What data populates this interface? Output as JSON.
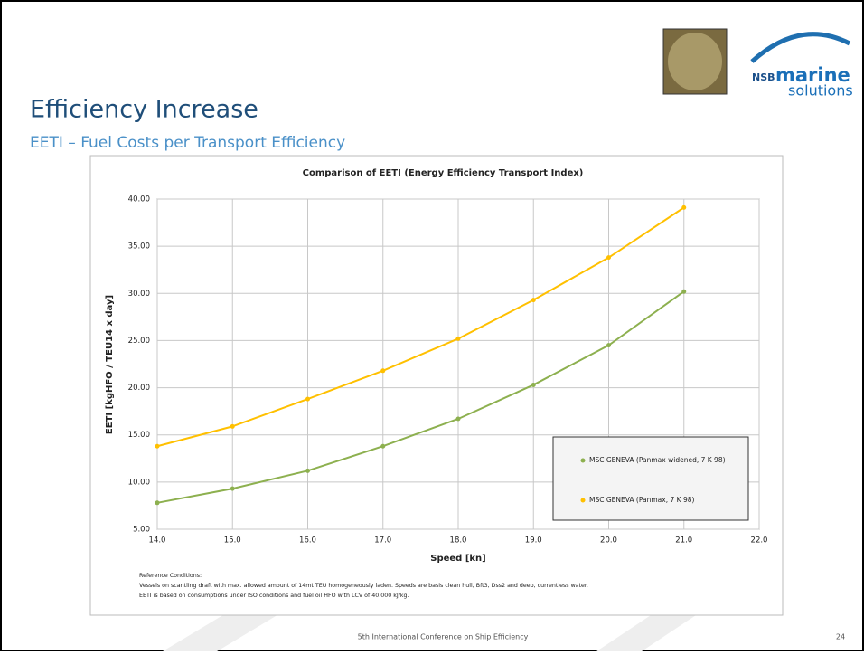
{
  "slide": {
    "title": "Efficiency Increase",
    "subtitle": "EETI – Fuel Costs per Transport Efficiency",
    "footer": "5th International Conference on Ship Efficiency",
    "page": "24",
    "logo": {
      "brand": "NSB",
      "word1": "marine",
      "word2": "solutions"
    }
  },
  "chart_data": {
    "type": "line",
    "title": "Comparison of EETI (Energy Efficiency Transport Index)",
    "x_label": "Speed [kn]",
    "y_label": "EETI [kgHFO / TEU14 x day]",
    "x": [
      14,
      15,
      16,
      17,
      18,
      19,
      20,
      21
    ],
    "series": [
      {
        "name": "MSC GENEVA (Panmax widened, 7 K 98)",
        "color": "#8db04f",
        "values": [
          7.8,
          9.3,
          11.2,
          13.8,
          16.7,
          20.3,
          24.5,
          30.2
        ]
      },
      {
        "name": "MSC GENEVA (Panmax, 7 K 98)",
        "color": "#ffc000",
        "values": [
          13.8,
          15.9,
          18.8,
          21.8,
          25.2,
          29.3,
          33.8,
          39.1
        ]
      }
    ],
    "xlim": [
      14,
      22
    ],
    "xticks": [
      {
        "value": 14,
        "label": "14.0"
      },
      {
        "value": 15,
        "label": "15.0"
      },
      {
        "value": 16,
        "label": "16.0"
      },
      {
        "value": 17,
        "label": "17.0"
      },
      {
        "value": 18,
        "label": "18.0"
      },
      {
        "value": 19,
        "label": "19.0"
      },
      {
        "value": 20,
        "label": "20.0"
      },
      {
        "value": 21,
        "label": "21.0"
      },
      {
        "value": 22,
        "label": "22.0"
      }
    ],
    "ylim": [
      5,
      40
    ],
    "yticks": [
      {
        "value": 5,
        "label": "5.00"
      },
      {
        "value": 10,
        "label": "10.00"
      },
      {
        "value": 15,
        "label": "15.00"
      },
      {
        "value": 20,
        "label": "20.00"
      },
      {
        "value": 25,
        "label": "25.00"
      },
      {
        "value": 30,
        "label": "30.00"
      },
      {
        "value": 35,
        "label": "35.00"
      },
      {
        "value": 40,
        "label": "40.00"
      }
    ],
    "grid": true,
    "legend": "lower right",
    "annotations": [
      "Reference Conditions:",
      "Vessels on scantling draft with max. allowed amount of  14mt TEU homogeneously laden. Speeds are basis clean hull, Bft3, Dss2 and deep, currentless water.",
      "EETI is based on consumptions under ISO conditions and fuel oil HFO with LCV of 40.000 kJ/kg."
    ]
  }
}
